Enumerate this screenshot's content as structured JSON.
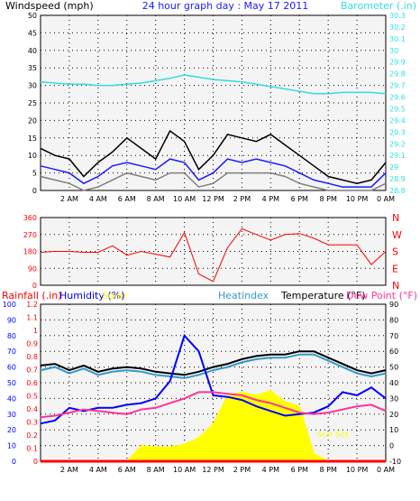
{
  "colors": {
    "background": "#ffffff",
    "plot_bg": "#f4f4f4",
    "wind_max": "#000000",
    "wind_avg": "#1a1aff",
    "wind_min": "#7f7f7f",
    "barometer": "#33dddd",
    "direction": "#ff0000",
    "humidity": "#0000ff",
    "solar": "#ffff00",
    "heatindex": "#3399cc",
    "temperature": "#000000",
    "dewpoint": "#ff3399",
    "rainfall": "#ff0000"
  },
  "chart_data": [
    {
      "type": "line",
      "title": "24 hour graph day : May 17 2011",
      "ylabel_left": "Windspeed (mph)",
      "ylabel_right": "Barometer (.in)",
      "ylim_left": [
        0,
        50
      ],
      "yticks_left": [
        "0",
        "5",
        "10",
        "15",
        "20",
        "25",
        "30",
        "35",
        "40",
        "45",
        "50"
      ],
      "ylim_right": [
        28.8,
        30.3
      ],
      "yticks_right": [
        "28.8",
        "28.9",
        "29",
        "29.1",
        "29.2",
        "29.3",
        "29.4",
        "29.5",
        "29.6",
        "29.7",
        "29.8",
        "29.9",
        "30",
        "30.1",
        "30.2",
        "30.3"
      ],
      "xticks": [
        "2 AM",
        "4 AM",
        "6 AM",
        "8 AM",
        "10 AM",
        "12 PM",
        "2 PM",
        "4 PM",
        "6 PM",
        "8 PM",
        "10 PM",
        "0 AM"
      ],
      "grid": true,
      "x": [
        0,
        1,
        2,
        3,
        4,
        5,
        6,
        7,
        8,
        9,
        10,
        11,
        12,
        13,
        14,
        15,
        16,
        17,
        18,
        19,
        20,
        21,
        22,
        23,
        24
      ],
      "series": [
        {
          "id": "wind_max",
          "values": [
            12,
            10,
            9,
            4,
            8,
            11,
            15,
            12,
            9,
            17,
            14,
            6,
            10,
            16,
            15,
            14,
            16,
            13,
            10,
            7,
            4,
            3,
            2,
            3,
            8
          ]
        },
        {
          "id": "wind_avg",
          "values": [
            7,
            6,
            5,
            2,
            4,
            7,
            8,
            7,
            6,
            9,
            8,
            3,
            5,
            9,
            8,
            9,
            8,
            7,
            5,
            3,
            2,
            1,
            1,
            1,
            5
          ]
        },
        {
          "id": "wind_min",
          "values": [
            4,
            3,
            2,
            0,
            1,
            3,
            5,
            4,
            3,
            5,
            5,
            1,
            2,
            5,
            5,
            5,
            5,
            4,
            2,
            1,
            0,
            0,
            0,
            0,
            2
          ]
        },
        {
          "id": "barometer",
          "axis": "right",
          "values": [
            29.73,
            29.72,
            29.71,
            29.71,
            29.7,
            29.7,
            29.71,
            29.72,
            29.74,
            29.76,
            29.79,
            29.77,
            29.75,
            29.74,
            29.73,
            29.71,
            29.69,
            29.67,
            29.65,
            29.63,
            29.63,
            29.64,
            29.64,
            29.64,
            29.63
          ]
        }
      ]
    },
    {
      "type": "line",
      "ylim": [
        0,
        360
      ],
      "yticks": [
        "0",
        "90",
        "180",
        "270",
        "360"
      ],
      "compass": [
        "N",
        "W",
        "S",
        "E",
        "N"
      ],
      "grid": true,
      "x": [
        0,
        1,
        2,
        3,
        4,
        5,
        6,
        7,
        8,
        9,
        10,
        11,
        12,
        13,
        14,
        15,
        16,
        17,
        18,
        19,
        20,
        21,
        22,
        23,
        24
      ],
      "series": [
        {
          "id": "direction",
          "values": [
            175,
            180,
            180,
            175,
            175,
            210,
            160,
            180,
            165,
            150,
            280,
            60,
            20,
            200,
            300,
            270,
            240,
            270,
            275,
            250,
            215,
            215,
            215,
            110,
            180
          ]
        }
      ]
    },
    {
      "type": "line",
      "ylabel_rain": "Rainfall (.in)",
      "ylabel_humidity": "Humidity (%)",
      "ylabel_solar": "Solar",
      "label_heatindex": "Heatindex",
      "label_temperature": "Temperature (°F)",
      "label_dewpoint": "Dew Point (°F)",
      "annotation": "Sun Set",
      "ylim_humidity": [
        0,
        100
      ],
      "yticks_humidity": [
        "0",
        "10",
        "20",
        "30",
        "40",
        "50",
        "60",
        "70",
        "80",
        "90",
        "100"
      ],
      "ylim_rain": [
        0,
        1.2
      ],
      "yticks_rain": [
        "0",
        "0.1",
        "0.2",
        "0.3",
        "0.4",
        "0.5",
        "0.6",
        "0.7",
        "0.8",
        "0.9",
        "1",
        "1.1",
        "1.2"
      ],
      "ylim_temp": [
        -10,
        90
      ],
      "yticks_temp": [
        "-10",
        "0",
        "10",
        "20",
        "30",
        "40",
        "50",
        "60",
        "70",
        "80",
        "90"
      ],
      "grid": true,
      "x": [
        0,
        1,
        2,
        3,
        4,
        5,
        6,
        7,
        8,
        9,
        10,
        11,
        12,
        13,
        14,
        15,
        16,
        17,
        18,
        19,
        20,
        21,
        22,
        23,
        24
      ],
      "series": [
        {
          "id": "temperature",
          "axis": "temp",
          "values": [
            51,
            52,
            48,
            51,
            47,
            49,
            50,
            49,
            47,
            46,
            45,
            47,
            50,
            52,
            55,
            57,
            58,
            58,
            60,
            60,
            56,
            52,
            48,
            46,
            48
          ]
        },
        {
          "id": "heatindex",
          "axis": "temp",
          "values": [
            48,
            50,
            46,
            49,
            45,
            47,
            48,
            47,
            45,
            44,
            43,
            45,
            48,
            50,
            53,
            55,
            56,
            56,
            58,
            58,
            54,
            50,
            46,
            44,
            46
          ]
        },
        {
          "id": "humidity",
          "axis": "humidity",
          "values": [
            24,
            26,
            34,
            32,
            34,
            34,
            36,
            37,
            40,
            51,
            80,
            70,
            42,
            41,
            39,
            35,
            32,
            29,
            30,
            31,
            35,
            44,
            42,
            47,
            40
          ]
        },
        {
          "id": "dewpoint",
          "axis": "temp",
          "values": [
            18,
            19,
            21,
            23,
            22,
            21,
            20,
            23,
            24,
            27,
            30,
            34,
            34,
            33,
            32,
            29,
            27,
            24,
            21,
            20,
            21,
            23,
            25,
            26,
            22
          ]
        },
        {
          "id": "solar",
          "axis": "humidity",
          "values": [
            0,
            0,
            0,
            0,
            0,
            0,
            0,
            10,
            9,
            9,
            11,
            15,
            24,
            42,
            44,
            42,
            45,
            38,
            35,
            5,
            0,
            0,
            0,
            0,
            0
          ]
        },
        {
          "id": "rainfall",
          "axis": "rain",
          "values": [
            0,
            0,
            0,
            0,
            0,
            0,
            0,
            0,
            0,
            0,
            0,
            0,
            0,
            0,
            0,
            0,
            0,
            0,
            0,
            0,
            0,
            0,
            0,
            0,
            0
          ]
        }
      ]
    }
  ]
}
